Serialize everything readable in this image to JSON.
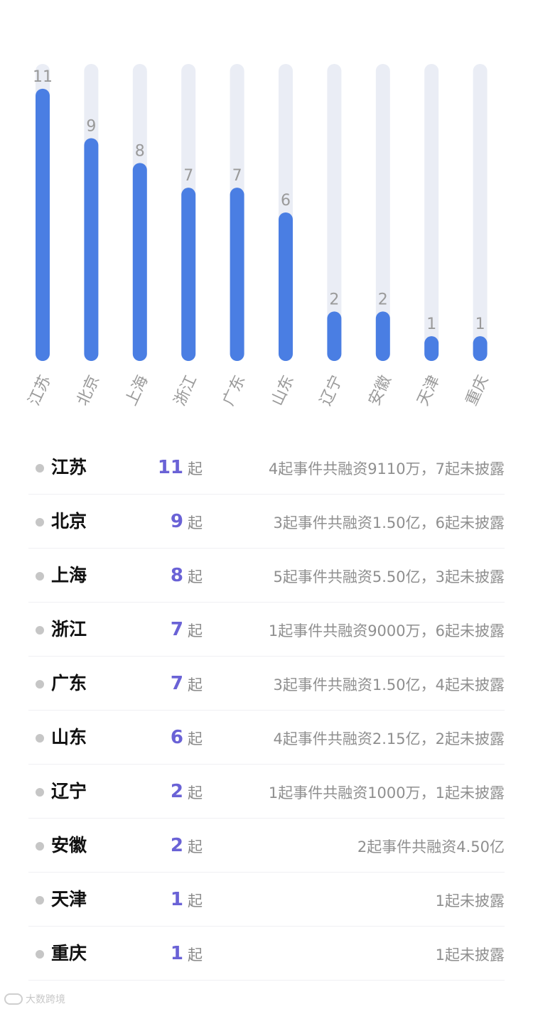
{
  "chart_data": {
    "type": "bar",
    "categories": [
      "江苏",
      "北京",
      "上海",
      "浙江",
      "广东",
      "山东",
      "辽宁",
      "安徽",
      "天津",
      "重庆"
    ],
    "values": [
      11,
      9,
      8,
      7,
      7,
      6,
      2,
      2,
      1,
      1
    ],
    "ylim": [
      0,
      12
    ],
    "title": "",
    "xlabel": "",
    "ylabel": "",
    "grid": false,
    "bar_color": "#4a7ee3",
    "track_color": "#eaedf5",
    "label_color": "#9a9a9a"
  },
  "list": {
    "unit": "起",
    "rows": [
      {
        "province": "江苏",
        "count": "11",
        "desc": "4起事件共融资9110万，7起未披露"
      },
      {
        "province": "北京",
        "count": "9",
        "desc": "3起事件共融资1.50亿，6起未披露"
      },
      {
        "province": "上海",
        "count": "8",
        "desc": "5起事件共融资5.50亿，3起未披露"
      },
      {
        "province": "浙江",
        "count": "7",
        "desc": "1起事件共融资9000万，6起未披露"
      },
      {
        "province": "广东",
        "count": "7",
        "desc": "3起事件共融资1.50亿，4起未披露"
      },
      {
        "province": "山东",
        "count": "6",
        "desc": "4起事件共融资2.15亿，2起未披露"
      },
      {
        "province": "辽宁",
        "count": "2",
        "desc": "1起事件共融资1000万，1起未披露"
      },
      {
        "province": "安徽",
        "count": "2",
        "desc": "2起事件共融资4.50亿"
      },
      {
        "province": "天津",
        "count": "1",
        "desc": "1起未披露"
      },
      {
        "province": "重庆",
        "count": "1",
        "desc": "1起未披露"
      }
    ]
  },
  "watermark": {
    "text": "大数跨境"
  },
  "colors": {
    "accent": "#6a62d6"
  }
}
